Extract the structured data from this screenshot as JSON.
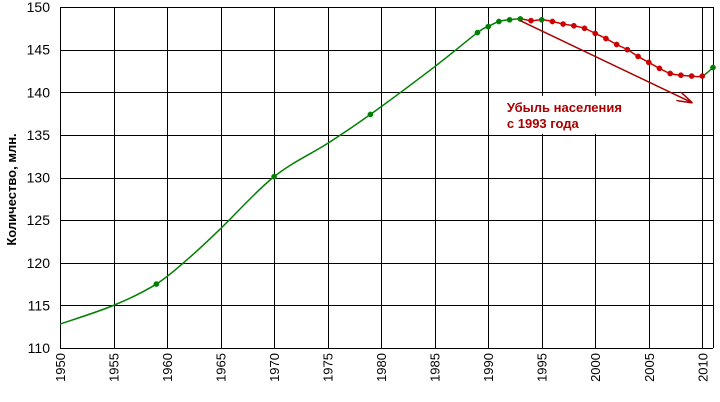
{
  "chart_data": {
    "type": "line",
    "title": "",
    "xlabel": "",
    "ylabel": "Количество, млн.",
    "xlim": [
      1950,
      2011
    ],
    "ylim": [
      110,
      150
    ],
    "x_ticks": [
      1950,
      1955,
      1960,
      1965,
      1970,
      1975,
      1980,
      1985,
      1990,
      1995,
      2000,
      2005,
      2010
    ],
    "y_ticks": [
      110,
      115,
      120,
      125,
      130,
      135,
      140,
      145,
      150
    ],
    "grid": true,
    "curve": {
      "x": [
        1950,
        1955,
        1959,
        1962,
        1965,
        1970,
        1975,
        1979,
        1985,
        1989,
        1990,
        1991,
        1992,
        1993,
        1994,
        1995,
        1996,
        1997,
        1998,
        1999,
        2000,
        2001,
        2002,
        2003,
        2004,
        2005,
        2006,
        2007,
        2008,
        2009,
        2010,
        2011
      ],
      "y": [
        112.8,
        115.0,
        117.5,
        120.5,
        124.0,
        130.1,
        134.0,
        137.4,
        143.0,
        147.0,
        147.7,
        148.3,
        148.5,
        148.6,
        148.4,
        148.5,
        148.3,
        148.0,
        147.8,
        147.5,
        146.9,
        146.3,
        145.6,
        145.0,
        144.2,
        143.5,
        142.8,
        142.2,
        142.0,
        141.9,
        141.9,
        142.9
      ]
    },
    "series": [
      {
        "color": "#008000",
        "x": [
          1959,
          1970,
          1979,
          1989,
          1990,
          1991,
          1992,
          1993,
          1995,
          2011
        ],
        "y": [
          117.5,
          130.1,
          137.4,
          147.0,
          147.7,
          148.3,
          148.5,
          148.6,
          148.5,
          142.9
        ]
      },
      {
        "color": "#cc0000",
        "x": [
          1994,
          1996,
          1997,
          1998,
          1999,
          2000,
          2001,
          2002,
          2003,
          2004,
          2005,
          2006,
          2007,
          2008,
          2009,
          2010
        ],
        "y": [
          148.4,
          148.3,
          148.0,
          147.8,
          147.5,
          146.9,
          146.3,
          145.6,
          145.0,
          144.2,
          143.5,
          142.8,
          142.2,
          142.0,
          141.9,
          141.9
        ]
      }
    ],
    "annotation": {
      "lines": [
        "Убыль населения",
        "с 1993 года"
      ],
      "color": "#aa0000",
      "arrow_from": [
        1993,
        148.4
      ],
      "arrow_to": [
        2009,
        138.8
      ],
      "text_at": [
        1991,
        137.7
      ]
    }
  }
}
